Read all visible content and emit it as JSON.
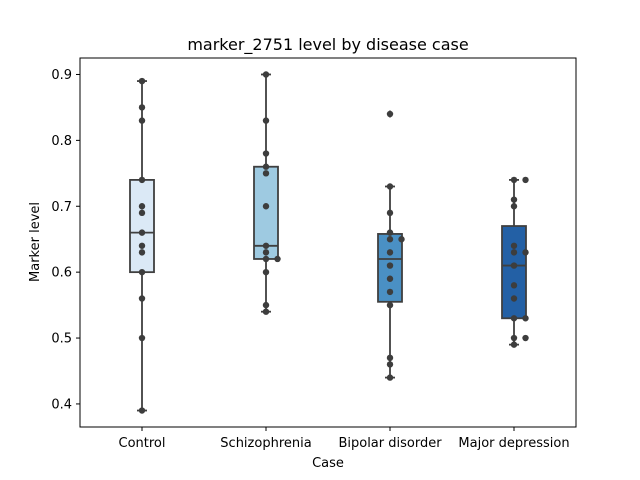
{
  "chart_data": {
    "type": "box",
    "title": "marker_2751 level by disease case",
    "xlabel": "Case",
    "ylabel": "Marker level",
    "categories": [
      "Control",
      "Schizophrenia",
      "Bipolar disorder",
      "Major depression"
    ],
    "ylim": [
      0.365,
      0.925
    ],
    "yticks": [
      0.4,
      0.5,
      0.6,
      0.7,
      0.8,
      0.9
    ],
    "ytick_labels": [
      "0.4",
      "0.5",
      "0.6",
      "0.7",
      "0.8",
      "0.9"
    ],
    "grid": false,
    "boxes": [
      {
        "name": "Control",
        "color": "#dbe9f6",
        "whisker_low": 0.39,
        "q1": 0.6,
        "median": 0.66,
        "q3": 0.74,
        "whisker_high": 0.89,
        "outliers": []
      },
      {
        "name": "Schizophrenia",
        "color": "#9ecae1",
        "whisker_low": 0.54,
        "q1": 0.62,
        "median": 0.64,
        "q3": 0.76,
        "whisker_high": 0.9,
        "outliers": []
      },
      {
        "name": "Bipolar disorder",
        "color": "#4a90c4",
        "whisker_low": 0.44,
        "q1": 0.555,
        "median": 0.62,
        "q3": 0.658,
        "whisker_high": 0.73,
        "outliers": [
          0.84
        ]
      },
      {
        "name": "Major depression",
        "color": "#2360a5",
        "whisker_low": 0.49,
        "q1": 0.53,
        "median": 0.61,
        "q3": 0.67,
        "whisker_high": 0.74,
        "outliers": []
      }
    ],
    "points": [
      {
        "category": "Control",
        "values": [
          0.89,
          0.85,
          0.83,
          0.74,
          0.7,
          0.69,
          0.66,
          0.64,
          0.63,
          0.6,
          0.56,
          0.5,
          0.39
        ]
      },
      {
        "category": "Schizophrenia",
        "values": [
          0.9,
          0.83,
          0.78,
          0.76,
          0.75,
          0.7,
          0.64,
          0.63,
          0.62,
          0.62,
          0.6,
          0.55,
          0.54
        ]
      },
      {
        "category": "Bipolar disorder",
        "values": [
          0.84,
          0.73,
          0.69,
          0.66,
          0.65,
          0.65,
          0.63,
          0.61,
          0.59,
          0.57,
          0.55,
          0.47,
          0.46,
          0.44
        ]
      },
      {
        "category": "Major depression",
        "values": [
          0.74,
          0.74,
          0.71,
          0.7,
          0.64,
          0.63,
          0.63,
          0.61,
          0.58,
          0.56,
          0.53,
          0.53,
          0.5,
          0.5,
          0.49
        ]
      }
    ]
  }
}
